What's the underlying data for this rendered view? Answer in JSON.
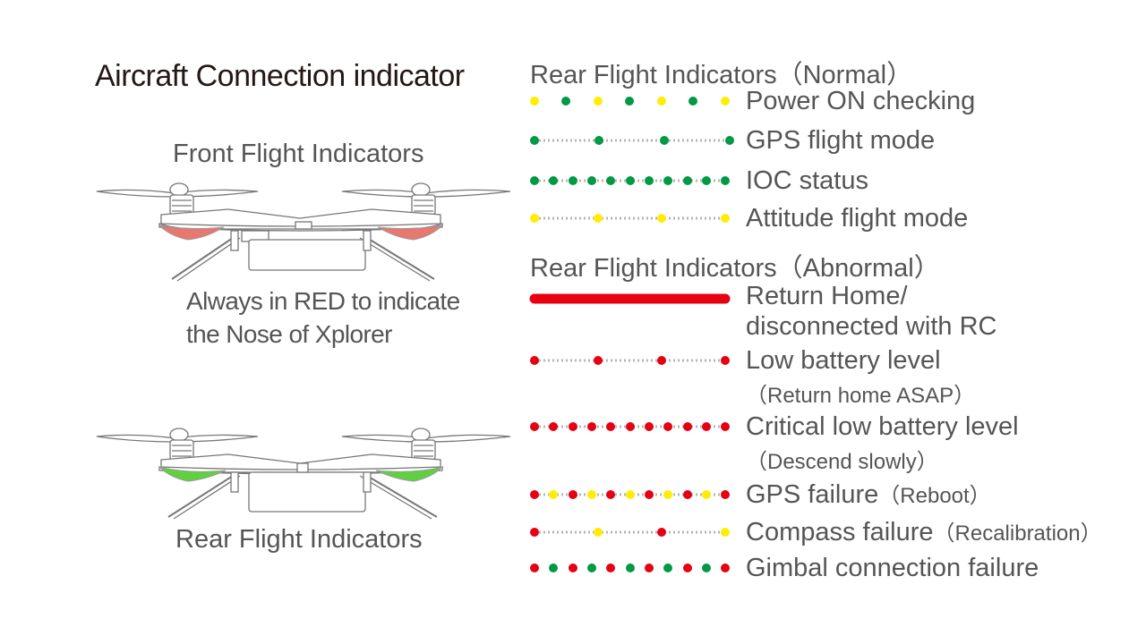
{
  "title": "Aircraft Connection indicator",
  "front": {
    "label": "Front Flight Indicators",
    "note_line1": "Always in RED to indicate",
    "note_line2": "the Nose of Xplorer",
    "light_color": "#e8776e"
  },
  "rear": {
    "label": "Rear Flight Indicators",
    "light_color": "#5fd140"
  },
  "colors": {
    "yellow": "#ffee00",
    "green": "#009944",
    "red": "#e60012",
    "dotted_line": "#b5b5b5"
  },
  "normal": {
    "title": "Rear Flight Indicators（Normal）",
    "items": [
      {
        "label": "Power ON checking",
        "pattern": "yellow-green alternating blink"
      },
      {
        "label": "GPS flight mode",
        "pattern": "green slow blink"
      },
      {
        "label": "IOC status",
        "pattern": "green fast blink"
      },
      {
        "label": "Attitude flight mode",
        "pattern": "yellow slow blink"
      }
    ]
  },
  "abnormal": {
    "title": "Rear Flight Indicators（Abnormal）",
    "items": [
      {
        "label_line1": "Return Home/",
        "label_line2": "disconnected with RC",
        "pattern": "red solid"
      },
      {
        "label": "Low battery level",
        "sub": "（Return home ASAP）",
        "pattern": "red slow blink"
      },
      {
        "label": "Critical low battery level",
        "sub": "（Descend slowly）",
        "pattern": "red fast blink"
      },
      {
        "label": "GPS failure",
        "note": "（Reboot）",
        "pattern": "red-yellow fast alternating"
      },
      {
        "label": "Compass failure",
        "note": "（Recalibration）",
        "pattern": "red-yellow slow alternating"
      },
      {
        "label": "Gimbal connection failure",
        "pattern": "red-green alternating"
      }
    ]
  }
}
